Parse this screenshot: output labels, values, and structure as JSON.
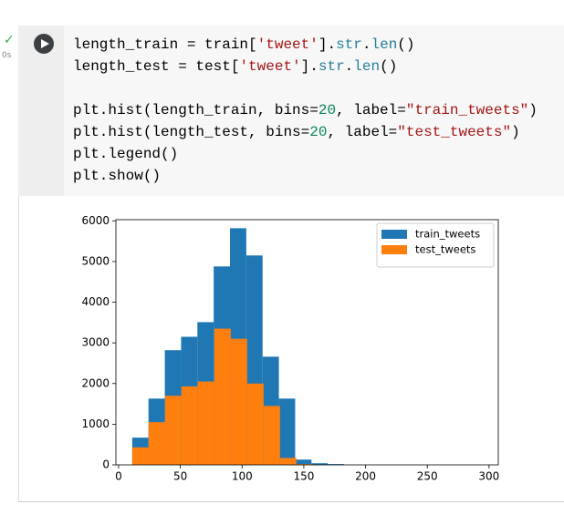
{
  "cell": {
    "status": "0s",
    "code": [
      [
        "length_train = train['tweet'].str.len()",
        "length_test = test['tweet'].str.len()"
      ],
      [
        "plt.hist(length_train, bins=20, label=\"train_tweets\")",
        "plt.hist(length_test, bins=20, label=\"test_tweets\")",
        "plt.legend()",
        "plt.show()"
      ]
    ]
  },
  "chart_data": {
    "type": "histogram",
    "xlim": [
      -2.2,
      307.5
    ],
    "ylim": [
      0,
      6030
    ],
    "xticks": [
      0,
      50,
      100,
      150,
      200,
      250,
      300
    ],
    "yticks": [
      0,
      1000,
      2000,
      3000,
      4000,
      5000,
      6000
    ],
    "legend": "upper right",
    "series": [
      {
        "name": "train_tweets",
        "color": "#1f77b4",
        "bins": [
          11,
          24.2,
          37.4,
          50.6,
          63.8,
          77,
          90.2,
          103.4,
          116.6,
          129.8,
          143,
          156.2,
          169.4,
          182.6,
          195.8,
          209,
          222.2,
          235.4,
          248.6,
          261.8,
          275
        ],
        "values": [
          670,
          1630,
          2820,
          3150,
          3510,
          4880,
          5820,
          5150,
          2660,
          1630,
          130,
          40,
          20,
          0,
          0,
          0,
          0,
          0,
          0,
          0
        ]
      },
      {
        "name": "test_tweets",
        "color": "#ff7f0e",
        "bins": [
          11,
          24.3,
          37.6,
          50.9,
          64.2,
          77.5,
          90.8,
          104.1,
          117.4,
          130.7,
          144,
          157.3,
          170.6,
          183.9,
          197.2,
          210.5,
          223.8,
          237.1,
          250.4,
          263.7,
          277
        ],
        "values": [
          430,
          1050,
          1700,
          1930,
          2050,
          3350,
          3100,
          2000,
          1450,
          170,
          20,
          0,
          0,
          0,
          0,
          0,
          0,
          0,
          0,
          0
        ]
      }
    ]
  }
}
